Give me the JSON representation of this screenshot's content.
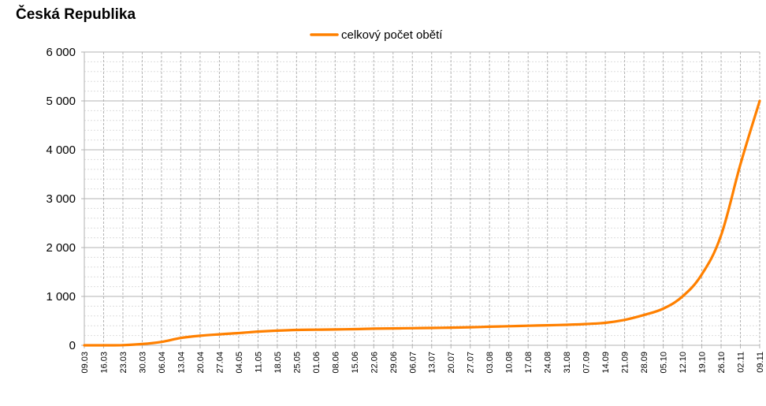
{
  "chart_data": {
    "type": "line",
    "title": "Česká Republika",
    "legend": {
      "position": "top-center"
    },
    "grid": {
      "major": true,
      "minor": true
    },
    "series": [
      {
        "name": "celkový počet obětí",
        "color": "#FF8000",
        "points": [
          [
            "09.03",
            0
          ],
          [
            "16.03",
            0
          ],
          [
            "23.03",
            3
          ],
          [
            "30.03",
            25
          ],
          [
            "06.04",
            70
          ],
          [
            "13.04",
            150
          ],
          [
            "20.04",
            195
          ],
          [
            "27.04",
            225
          ],
          [
            "04.05",
            250
          ],
          [
            "11.05",
            280
          ],
          [
            "18.05",
            300
          ],
          [
            "25.05",
            315
          ],
          [
            "01.06",
            320
          ],
          [
            "08.06",
            325
          ],
          [
            "15.06",
            330
          ],
          [
            "22.06",
            340
          ],
          [
            "29.06",
            345
          ],
          [
            "06.07",
            350
          ],
          [
            "13.07",
            355
          ],
          [
            "20.07",
            362
          ],
          [
            "27.07",
            370
          ],
          [
            "03.08",
            380
          ],
          [
            "10.08",
            390
          ],
          [
            "17.08",
            400
          ],
          [
            "24.08",
            410
          ],
          [
            "31.08",
            420
          ],
          [
            "07.09",
            435
          ],
          [
            "14.09",
            460
          ],
          [
            "21.09",
            520
          ],
          [
            "28.09",
            620
          ],
          [
            "05.10",
            750
          ],
          [
            "12.10",
            1000
          ],
          [
            "19.10",
            1450
          ],
          [
            "26.10",
            2250
          ],
          [
            "02.11",
            3700
          ],
          [
            "09.11",
            5000
          ]
        ]
      }
    ],
    "xlabels": [
      "09.03",
      "16.03",
      "23.03",
      "30.03",
      "06.04",
      "13.04",
      "20.04",
      "27.04",
      "04.05",
      "11.05",
      "18.05",
      "25.05",
      "01.06",
      "08.06",
      "15.06",
      "22.06",
      "29.06",
      "06.07",
      "13.07",
      "20.07",
      "27.07",
      "03.08",
      "10.08",
      "17.08",
      "24.08",
      "31.08",
      "07.09",
      "14.09",
      "21.09",
      "28.09",
      "05.10",
      "12.10",
      "19.10",
      "26.10",
      "02.11",
      "09.11"
    ],
    "yticks": [
      "0",
      "1 000",
      "2 000",
      "3 000",
      "4 000",
      "5 000",
      "6 000"
    ],
    "yticks_values": [
      0,
      1000,
      2000,
      3000,
      4000,
      5000,
      6000
    ],
    "ylim": [
      0,
      6000
    ],
    "gridline_color": "#B3B3B3"
  }
}
